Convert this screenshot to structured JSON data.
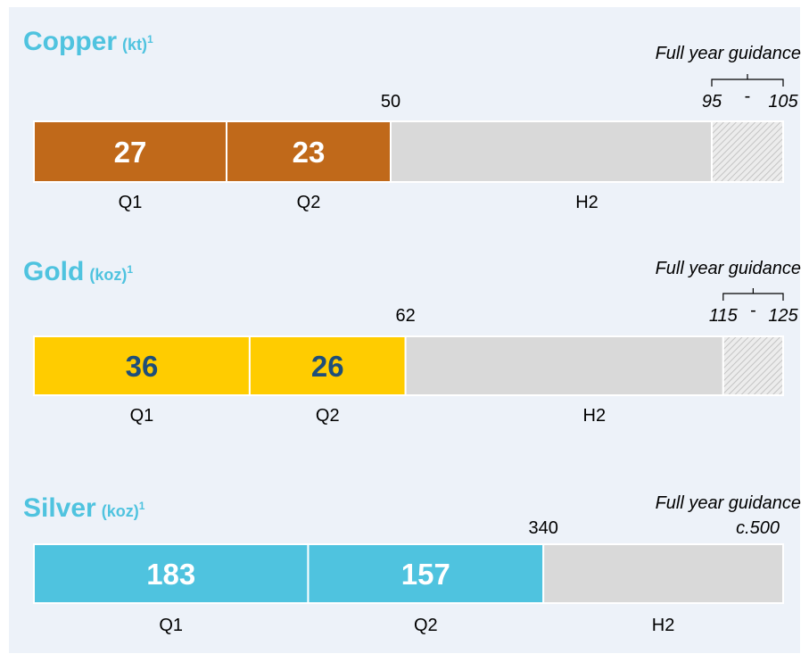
{
  "chart_data": [
    {
      "type": "bar",
      "title": "Copper",
      "unit": "(kt)",
      "footnote": "1",
      "categories": [
        "Q1",
        "Q2",
        "H2"
      ],
      "values": [
        27,
        23,
        null
      ],
      "color": "#c0691a",
      "label_color": "#ffffff",
      "total": 50,
      "xlim": [
        0,
        105
      ],
      "guidance": {
        "label": "Full year guidance",
        "low": 95,
        "high": 105,
        "separator": "-"
      }
    },
    {
      "type": "bar",
      "title": "Gold",
      "unit": "(koz)",
      "footnote": "1",
      "categories": [
        "Q1",
        "Q2",
        "H2"
      ],
      "values": [
        36,
        26,
        null
      ],
      "color": "#ffcc00",
      "label_color": "#1f4e79",
      "total": 62,
      "xlim": [
        0,
        125
      ],
      "guidance": {
        "label": "Full year guidance",
        "low": 115,
        "high": 125,
        "separator": "-"
      }
    },
    {
      "type": "bar",
      "title": "Silver",
      "unit": "(koz)",
      "footnote": "1",
      "categories": [
        "Q1",
        "Q2",
        "H2"
      ],
      "values": [
        183,
        157,
        null
      ],
      "color": "#4fc3df",
      "label_color": "#ffffff",
      "total": 340,
      "xlim": [
        0,
        500
      ],
      "guidance": {
        "label": "Full year guidance",
        "value": 500,
        "value_label": "c.500"
      }
    }
  ]
}
